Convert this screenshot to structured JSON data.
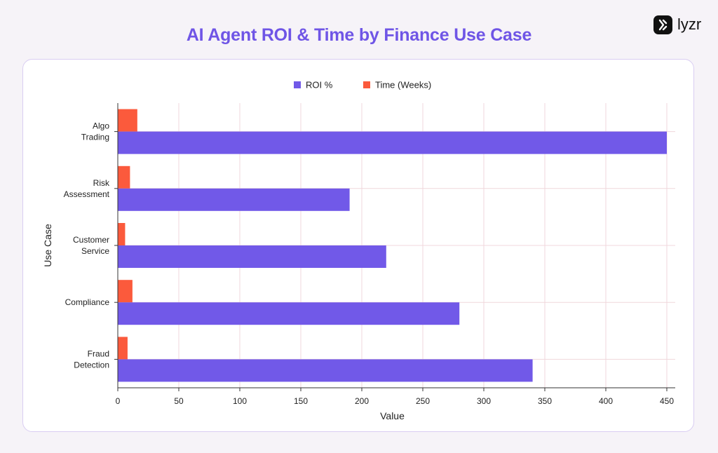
{
  "page_title": "AI Agent ROI & Time by Finance Use Case",
  "logo_text": "lyzr",
  "colors": {
    "roi": "#7159e8",
    "time": "#fb5a3c",
    "grid": "#f0d7dc",
    "title": "#6f55e6"
  },
  "chart_data": {
    "type": "bar",
    "orientation": "horizontal",
    "title": "AI Agent ROI & Time by Finance Use Case",
    "xlabel": "Value",
    "ylabel": "Use Case",
    "xlim": [
      0,
      450
    ],
    "xticks": [
      0,
      50,
      100,
      150,
      200,
      250,
      300,
      350,
      400,
      450
    ],
    "categories": [
      [
        "Algo",
        "Trading"
      ],
      [
        "Risk",
        "Assessment"
      ],
      [
        "Customer",
        "Service"
      ],
      [
        "Compliance"
      ],
      [
        "Fraud",
        "Detection"
      ]
    ],
    "series": [
      {
        "name": "ROI %",
        "color": "#7159e8",
        "values": [
          450,
          190,
          220,
          280,
          340
        ]
      },
      {
        "name": "Time (Weeks)",
        "color": "#fb5a3c",
        "values": [
          16,
          10,
          6,
          12,
          8
        ]
      }
    ],
    "legend_position": "top-center",
    "grid": true
  }
}
